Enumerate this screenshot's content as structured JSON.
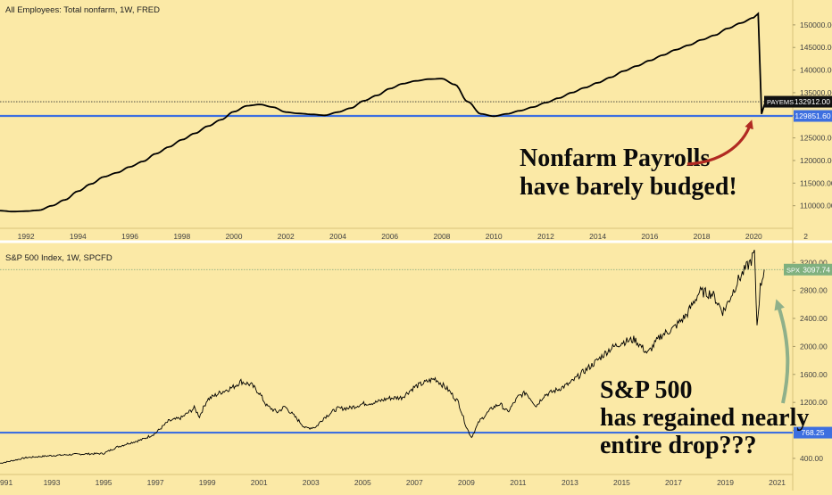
{
  "chart_data": [
    {
      "type": "line",
      "title": "All Employees: Total nonfarm, 1W, FRED",
      "x_ticks": [
        "1992",
        "1994",
        "1996",
        "1998",
        "2000",
        "2002",
        "2004",
        "2006",
        "2008",
        "2010",
        "2012",
        "2014",
        "2016",
        "2018",
        "2020",
        "2"
      ],
      "y_ticks": [
        "150000.00",
        "145000.00",
        "140000.00",
        "135000.00",
        "130000.00",
        "125000.00",
        "120000.00",
        "115000.00",
        "110000.00"
      ],
      "y_tick_values": [
        150000,
        145000,
        140000,
        135000,
        130000,
        125000,
        120000,
        115000,
        110000
      ],
      "ylim": [
        105000,
        155500
      ],
      "xlim": [
        1991.0,
        2021.5
      ],
      "series": [
        {
          "symbol": "PAYEMS",
          "last_value_label": "132912.00",
          "color": "#000000",
          "x": [
            1991.0,
            1991.5,
            1992.0,
            1992.5,
            1993.0,
            1993.5,
            1994.0,
            1994.5,
            1995.0,
            1995.5,
            1996.0,
            1996.5,
            1997.0,
            1997.5,
            1998.0,
            1998.5,
            1999.0,
            1999.5,
            2000.0,
            2000.5,
            2001.0,
            2001.5,
            2002.0,
            2002.5,
            2003.0,
            2003.5,
            2004.0,
            2004.5,
            2005.0,
            2005.5,
            2006.0,
            2006.5,
            2007.0,
            2007.5,
            2008.0,
            2008.5,
            2009.0,
            2009.5,
            2010.0,
            2010.5,
            2011.0,
            2011.5,
            2012.0,
            2012.5,
            2013.0,
            2013.5,
            2014.0,
            2014.5,
            2015.0,
            2015.5,
            2016.0,
            2016.5,
            2017.0,
            2017.5,
            2018.0,
            2018.5,
            2019.0,
            2019.5,
            2020.0,
            2020.17,
            2020.3,
            2020.45
          ],
          "y": [
            108900,
            108700,
            108800,
            109000,
            110000,
            111300,
            113200,
            114800,
            116400,
            117300,
            118600,
            119800,
            121500,
            123000,
            124600,
            126000,
            127600,
            129000,
            130800,
            132100,
            132400,
            131800,
            130700,
            130400,
            130200,
            130000,
            130700,
            131600,
            133200,
            134400,
            135900,
            137000,
            137600,
            138000,
            138100,
            136800,
            133000,
            130300,
            129800,
            130300,
            131000,
            131800,
            132800,
            133800,
            135000,
            136100,
            137200,
            138400,
            139800,
            140900,
            142100,
            143300,
            144500,
            145500,
            146700,
            147700,
            149200,
            150400,
            151600,
            152500,
            130300,
            133000
          ]
        }
      ],
      "reference_lines": [
        {
          "value": 129851.6,
          "label": "129851.60",
          "color": "#3d6fe0"
        }
      ],
      "annotation": {
        "lines": [
          "Nonfarm Payrolls",
          "have barely budged!"
        ],
        "color": "#0b0b0b"
      },
      "arrow_color": "#b12a22"
    },
    {
      "type": "line",
      "title": "S&P 500 Index, 1W, SPCFD",
      "x_ticks": [
        "991",
        "1993",
        "1995",
        "1997",
        "1999",
        "2001",
        "2003",
        "2005",
        "2007",
        "2009",
        "2011",
        "2013",
        "2015",
        "2017",
        "2019",
        "2021"
      ],
      "y_ticks": [
        "3200.00",
        "2800.00",
        "2400.00",
        "2000.00",
        "1600.00",
        "1200.00",
        "800.00",
        "400.00"
      ],
      "y_tick_values": [
        3200,
        2800,
        2400,
        2000,
        1600,
        1200,
        800,
        400
      ],
      "ylim": [
        170,
        3420
      ],
      "xlim": [
        1991.0,
        2021.6
      ],
      "series": [
        {
          "symbol": "SPX",
          "last_value_label": "3097.74",
          "color": "#000000",
          "x": [
            1991.0,
            1992.0,
            1993.0,
            1994.0,
            1995.0,
            1995.5,
            1996.0,
            1996.5,
            1997.0,
            1997.5,
            1998.0,
            1998.5,
            1998.7,
            1999.0,
            1999.5,
            2000.0,
            2000.3,
            2000.7,
            2001.0,
            2001.3,
            2001.7,
            2002.0,
            2002.5,
            2002.8,
            2003.2,
            2003.5,
            2004.0,
            2004.5,
            2005.0,
            2005.5,
            2006.0,
            2006.5,
            2007.0,
            2007.5,
            2007.8,
            2008.3,
            2008.7,
            2009.0,
            2009.2,
            2009.5,
            2010.0,
            2010.3,
            2010.6,
            2011.0,
            2011.3,
            2011.7,
            2012.0,
            2012.5,
            2013.0,
            2013.5,
            2014.0,
            2014.5,
            2015.0,
            2015.5,
            2016.0,
            2016.5,
            2017.0,
            2017.5,
            2018.0,
            2018.5,
            2018.9,
            2019.0,
            2019.5,
            2020.0,
            2020.12,
            2020.22,
            2020.35,
            2020.5
          ],
          "y": [
            330,
            410,
            440,
            460,
            470,
            560,
            620,
            670,
            760,
            930,
            980,
            1120,
            1000,
            1240,
            1340,
            1420,
            1500,
            1450,
            1340,
            1150,
            1060,
            1140,
            950,
            830,
            850,
            980,
            1110,
            1120,
            1180,
            1200,
            1260,
            1270,
            1420,
            1500,
            1540,
            1380,
            1200,
            850,
            700,
            930,
            1120,
            1180,
            1060,
            1280,
            1340,
            1150,
            1300,
            1380,
            1470,
            1630,
            1780,
            1950,
            2060,
            2100,
            1900,
            2150,
            2260,
            2450,
            2780,
            2750,
            2500,
            2550,
            2950,
            3230,
            3340,
            2300,
            2850,
            3098
          ]
        }
      ],
      "reference_lines": [
        {
          "value": 768.25,
          "label": "768.25",
          "color": "#3d6fe0"
        }
      ],
      "annotation": {
        "lines": [
          "S&P 500",
          "has regained nearly",
          "entire drop???"
        ],
        "color": "#0b0b0b"
      },
      "arrow_color": "#8fb08a"
    }
  ]
}
